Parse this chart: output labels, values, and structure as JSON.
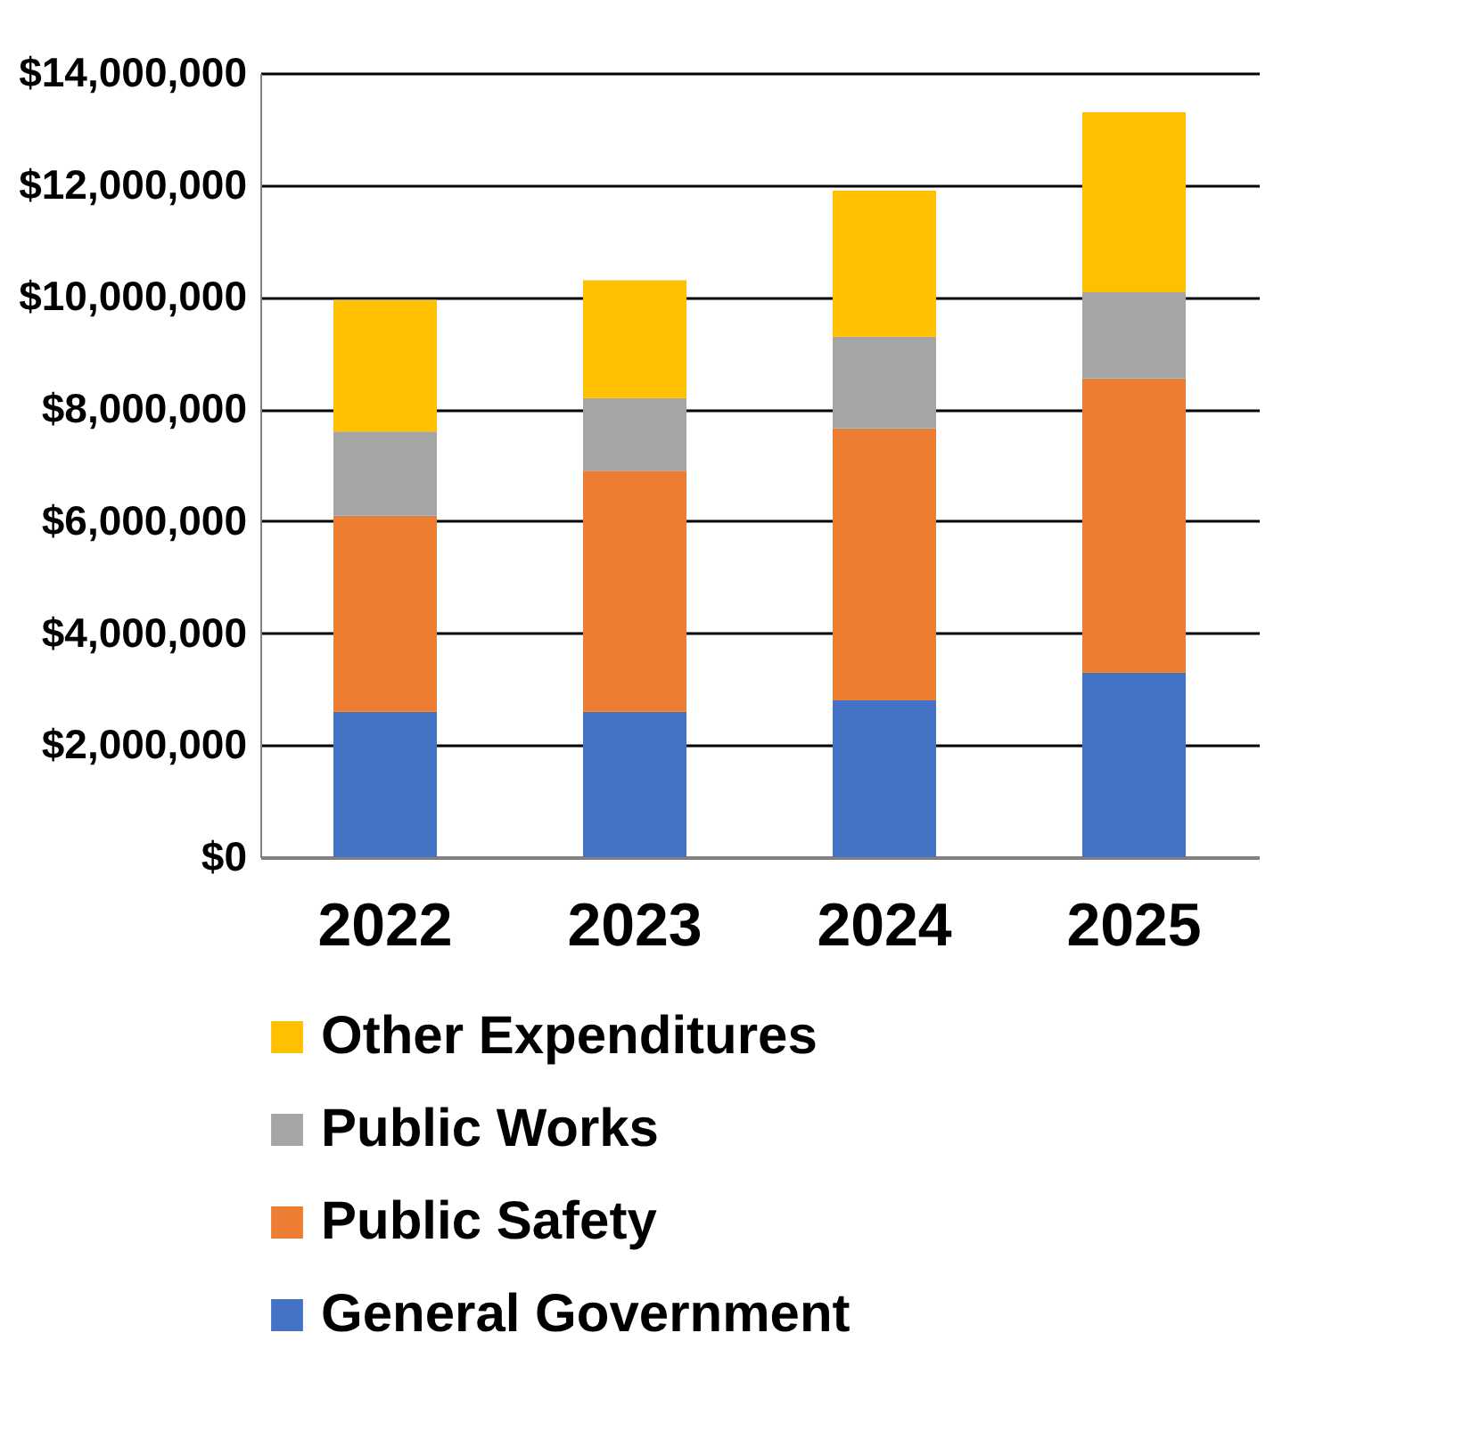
{
  "chart_data": {
    "type": "bar",
    "stacked": true,
    "categories": [
      "2022",
      "2023",
      "2024",
      "2025"
    ],
    "series": [
      {
        "name": "General Government",
        "color": "#4472c4",
        "values": [
          2600000,
          2600000,
          2800000,
          3300000
        ]
      },
      {
        "name": "Public Safety",
        "color": "#ed7d31",
        "values": [
          3500000,
          4300000,
          4860000,
          5250000
        ]
      },
      {
        "name": "Public Works",
        "color": "#a5a5a5",
        "values": [
          1500000,
          1300000,
          1640000,
          1550000
        ]
      },
      {
        "name": "Other Expenditures",
        "color": "#ffc000",
        "values": [
          2350000,
          2100000,
          2600000,
          3200000
        ]
      }
    ],
    "ylim": [
      0,
      14000000
    ],
    "yticks": [
      {
        "value": 0,
        "label": "$0"
      },
      {
        "value": 2000000,
        "label": "$2,000,000"
      },
      {
        "value": 4000000,
        "label": "$4,000,000"
      },
      {
        "value": 6000000,
        "label": "$6,000,000"
      },
      {
        "value": 8000000,
        "label": "$8,000,000"
      },
      {
        "value": 10000000,
        "label": "$10,000,000"
      },
      {
        "value": 12000000,
        "label": "$12,000,000"
      },
      {
        "value": 14000000,
        "label": "$14,000,000"
      }
    ],
    "grid": "y",
    "legend": "bottom"
  }
}
